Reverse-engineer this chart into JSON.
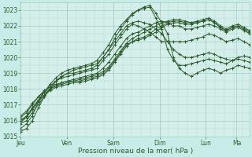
{
  "title": "",
  "xlabel": "Pression niveau de la mer( hPa )",
  "background_color": "#c8ece8",
  "plot_bg_color": "#d4eeea",
  "grid_major_color": "#a8ccc8",
  "grid_minor_color": "#b8d8d4",
  "line_color": "#2d5a2d",
  "ylim": [
    1015,
    1023.5
  ],
  "yticks": [
    1015,
    1016,
    1017,
    1018,
    1019,
    1020,
    1021,
    1022,
    1023
  ],
  "x_day_labels": [
    "Jeu",
    "Ven",
    "Sam",
    "Dim",
    "Lun",
    "Ma"
  ],
  "x_day_positions": [
    0.0,
    2.0,
    4.0,
    6.0,
    8.0,
    9.33
  ],
  "xlim": [
    0,
    9.9
  ],
  "series": [
    [
      1015.3,
      1015.5,
      1016.0,
      1016.8,
      1017.5,
      1018.0,
      1018.5,
      1018.8,
      1019.0,
      1019.2,
      1019.3,
      1019.4,
      1019.5,
      1019.6,
      1020.0,
      1020.5,
      1021.2,
      1021.8,
      1022.3,
      1022.7,
      1023.0,
      1023.2,
      1023.3,
      1022.8,
      1022.2,
      1021.5,
      1020.0,
      1019.3,
      1019.0,
      1018.8,
      1019.0,
      1019.2,
      1019.3,
      1019.2,
      1019.0,
      1019.2,
      1019.3,
      1019.5,
      1019.4,
      1019.3
    ],
    [
      1015.5,
      1015.8,
      1016.3,
      1017.2,
      1017.8,
      1018.3,
      1018.7,
      1019.0,
      1019.2,
      1019.3,
      1019.4,
      1019.5,
      1019.6,
      1019.8,
      1020.3,
      1020.8,
      1021.5,
      1022.0,
      1022.4,
      1022.8,
      1023.0,
      1023.1,
      1023.2,
      1022.5,
      1021.8,
      1020.5,
      1019.8,
      1019.5,
      1019.5,
      1019.6,
      1019.7,
      1019.8,
      1019.9,
      1019.8,
      1019.7,
      1019.6,
      1019.8,
      1019.9,
      1019.8,
      1019.7
    ],
    [
      1015.8,
      1016.0,
      1016.5,
      1017.0,
      1017.5,
      1018.0,
      1018.5,
      1018.8,
      1019.0,
      1019.0,
      1019.1,
      1019.2,
      1019.3,
      1019.5,
      1020.0,
      1020.5,
      1021.0,
      1021.5,
      1022.0,
      1022.2,
      1022.3,
      1022.2,
      1022.1,
      1021.8,
      1021.5,
      1021.0,
      1020.5,
      1020.2,
      1020.0,
      1020.0,
      1020.1,
      1020.2,
      1020.3,
      1020.2,
      1020.0,
      1019.9,
      1019.8,
      1020.0,
      1020.1,
      1020.0
    ],
    [
      1015.9,
      1016.2,
      1016.8,
      1017.3,
      1017.8,
      1018.2,
      1018.5,
      1018.7,
      1018.8,
      1018.9,
      1019.0,
      1019.1,
      1019.2,
      1019.3,
      1019.8,
      1020.2,
      1020.8,
      1021.3,
      1021.8,
      1022.1,
      1022.0,
      1021.8,
      1021.6,
      1021.3,
      1021.0,
      1021.0,
      1021.0,
      1021.0,
      1021.0,
      1021.1,
      1021.2,
      1021.3,
      1021.5,
      1021.4,
      1021.2,
      1021.0,
      1021.1,
      1021.2,
      1021.0,
      1020.8
    ],
    [
      1016.0,
      1016.3,
      1016.8,
      1017.2,
      1017.6,
      1018.0,
      1018.2,
      1018.4,
      1018.5,
      1018.6,
      1018.7,
      1018.8,
      1018.9,
      1019.0,
      1019.3,
      1019.7,
      1020.2,
      1020.7,
      1021.2,
      1021.5,
      1021.6,
      1021.8,
      1022.0,
      1022.2,
      1022.3,
      1022.2,
      1022.0,
      1022.0,
      1021.8,
      1021.8,
      1021.9,
      1022.0,
      1022.1,
      1022.0,
      1021.8,
      1021.6,
      1021.8,
      1021.9,
      1021.7,
      1021.5
    ],
    [
      1016.2,
      1016.5,
      1017.0,
      1017.5,
      1017.8,
      1018.0,
      1018.2,
      1018.3,
      1018.4,
      1018.5,
      1018.5,
      1018.6,
      1018.7,
      1018.8,
      1019.0,
      1019.3,
      1019.8,
      1020.3,
      1020.8,
      1021.0,
      1021.2,
      1021.3,
      1021.5,
      1021.8,
      1022.0,
      1022.2,
      1022.3,
      1022.3,
      1022.2,
      1022.2,
      1022.3,
      1022.4,
      1022.5,
      1022.3,
      1022.0,
      1021.8,
      1022.0,
      1022.1,
      1021.9,
      1021.7
    ],
    [
      1016.3,
      1016.6,
      1017.1,
      1017.5,
      1017.9,
      1018.1,
      1018.3,
      1018.4,
      1018.5,
      1018.5,
      1018.6,
      1018.7,
      1018.8,
      1018.9,
      1019.1,
      1019.4,
      1019.9,
      1020.4,
      1020.9,
      1021.2,
      1021.4,
      1021.6,
      1021.8,
      1022.0,
      1022.2,
      1022.3,
      1022.4,
      1022.4,
      1022.3,
      1022.2,
      1022.2,
      1022.3,
      1022.4,
      1022.2,
      1021.9,
      1021.7,
      1021.9,
      1022.0,
      1021.8,
      1021.6
    ],
    [
      1016.0,
      1016.2,
      1016.7,
      1017.2,
      1017.6,
      1017.9,
      1018.1,
      1018.2,
      1018.3,
      1018.4,
      1018.4,
      1018.5,
      1018.6,
      1018.7,
      1018.9,
      1019.2,
      1019.7,
      1020.2,
      1020.7,
      1021.0,
      1021.1,
      1021.2,
      1021.4,
      1021.6,
      1021.9,
      1022.1,
      1022.2,
      1022.2,
      1022.1,
      1022.1,
      1022.2,
      1022.3,
      1022.4,
      1022.2,
      1021.9,
      1021.7,
      1021.9,
      1022.0,
      1021.8,
      1021.6
    ]
  ]
}
